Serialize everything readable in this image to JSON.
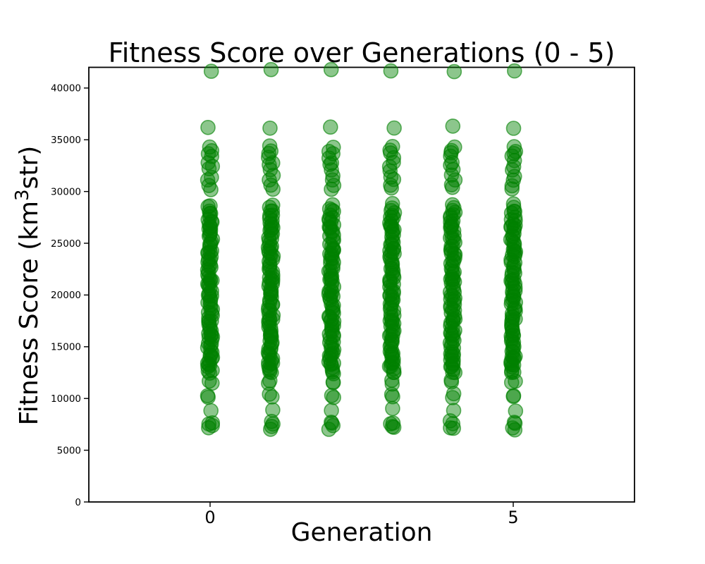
{
  "chart_data": {
    "type": "scatter",
    "title": "Fitness Score over Generations (0 - 5)",
    "xlabel": "Generation",
    "ylabel": "Fitness Score (km³str)",
    "ylabel_parts": {
      "prefix": "Fitness Score (km",
      "superscript": "3",
      "suffix": "str)"
    },
    "xlim": [
      -2,
      7
    ],
    "ylim": [
      0,
      42000
    ],
    "x_ticks": [
      0,
      5
    ],
    "y_ticks": [
      0,
      5000,
      10000,
      15000,
      20000,
      25000,
      30000,
      35000,
      40000
    ],
    "grid": false,
    "legend": "none",
    "marker": {
      "shape": "circle",
      "color": "#008000",
      "fill_opacity": 0.45,
      "edge_color": "#008000",
      "edge_opacity": 0.6,
      "radius_px": 10
    },
    "x_categories": [
      0,
      1,
      2,
      3,
      4,
      5
    ],
    "distribution_note": "each generation column shows the same fitness-score distribution (population repeated per generation)",
    "y_values": [
      41700,
      36200,
      34300,
      34000,
      33650,
      33300,
      32900,
      32500,
      32100,
      31500,
      31050,
      30650,
      30300,
      28700,
      28450,
      28200,
      28000,
      27800,
      27600,
      27400,
      27200,
      27000,
      26800,
      26600,
      26500,
      26400,
      26200,
      26000,
      25800,
      25600,
      25400,
      25200,
      25000,
      24800,
      24600,
      24400,
      24200,
      24100,
      24000,
      23800,
      23600,
      23400,
      23200,
      23000,
      22800,
      22600,
      22400,
      22200,
      22000,
      21800,
      21600,
      21500,
      21400,
      21200,
      21000,
      20800,
      20600,
      20400,
      20200,
      20000,
      20000,
      19800,
      19600,
      19400,
      19200,
      19000,
      18800,
      18600,
      18400,
      18200,
      18000,
      17800,
      17600,
      17500,
      17400,
      17200,
      17000,
      16800,
      16600,
      16400,
      16200,
      16100,
      16000,
      15800,
      15600,
      15400,
      15200,
      15000,
      14800,
      14600,
      14400,
      14200,
      14100,
      14000,
      13800,
      13600,
      13400,
      13300,
      13200,
      13000,
      12800,
      12600,
      12400,
      11700,
      11500,
      10400,
      10100,
      8900,
      7750,
      7500,
      7250,
      7100
    ]
  }
}
